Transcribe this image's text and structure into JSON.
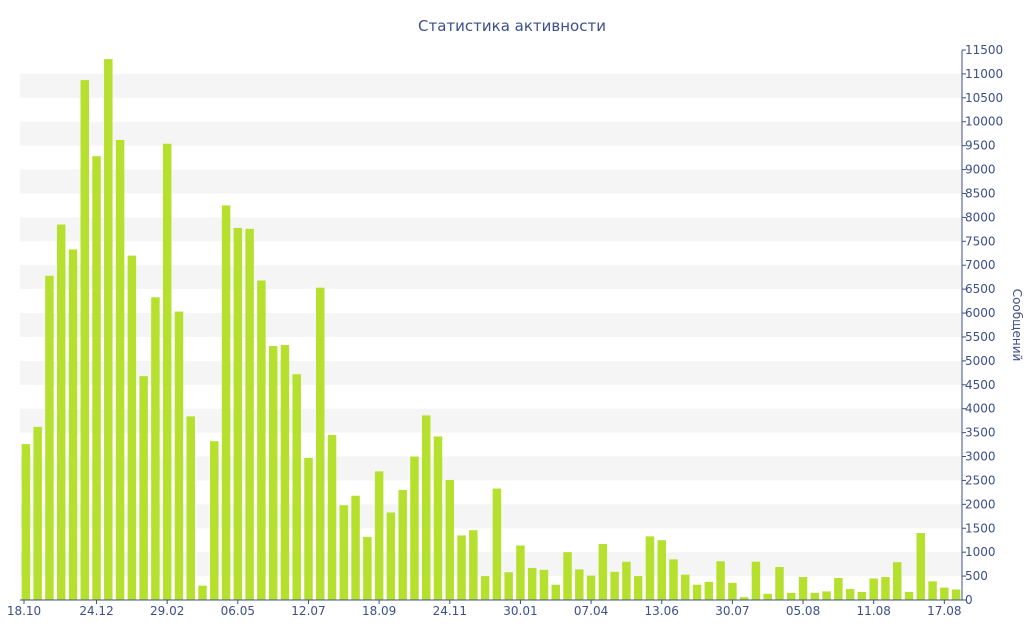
{
  "chart_data": {
    "type": "bar",
    "title": "Статистика активности",
    "xlabel": "",
    "ylabel": "Сообщений",
    "ylim": [
      0,
      11500
    ],
    "y_ticks": [
      0,
      500,
      1000,
      1500,
      2000,
      2500,
      3000,
      3500,
      4000,
      4500,
      5000,
      5500,
      6000,
      6500,
      7000,
      7500,
      8000,
      8500,
      9000,
      9500,
      10000,
      10500,
      11000,
      11500
    ],
    "y_axis_side": "right",
    "x_tick_labels": [
      {
        "label": "18.10",
        "index": 0
      },
      {
        "label": "24.12",
        "index": 6
      },
      {
        "label": "29.02",
        "index": 12
      },
      {
        "label": "06.05",
        "index": 18
      },
      {
        "label": "12.07",
        "index": 24
      },
      {
        "label": "18.09",
        "index": 30
      },
      {
        "label": "24.11",
        "index": 36
      },
      {
        "label": "30.01",
        "index": 42
      },
      {
        "label": "07.04",
        "index": 48
      },
      {
        "label": "13.06",
        "index": 54
      },
      {
        "label": "30.07",
        "index": 60
      },
      {
        "label": "05.08",
        "index": 66
      },
      {
        "label": "11.08",
        "index": 72
      },
      {
        "label": "17.08",
        "index": 78
      }
    ],
    "grid": "alternating horizontal bands",
    "legend": "none",
    "colors": {
      "bar": "#b5e02e",
      "text": "#3d4f8a",
      "band": "#f5f5f5"
    },
    "values": [
      3260,
      3620,
      6780,
      7850,
      7330,
      10870,
      9280,
      11310,
      9620,
      7200,
      4680,
      6330,
      9540,
      6030,
      3840,
      300,
      3320,
      8250,
      7780,
      7760,
      6680,
      5310,
      5330,
      4720,
      2970,
      6530,
      3450,
      1980,
      2180,
      1320,
      2690,
      1830,
      2300,
      3000,
      3860,
      3420,
      2510,
      1350,
      1460,
      500,
      2330,
      580,
      1140,
      670,
      630,
      320,
      1000,
      640,
      510,
      1170,
      590,
      800,
      500,
      1330,
      1250,
      850,
      530,
      320,
      380,
      810,
      360,
      60,
      800,
      130,
      690,
      150,
      480,
      150,
      180,
      460,
      230,
      170,
      450,
      480,
      790,
      170,
      1400,
      390,
      260,
      220
    ]
  }
}
